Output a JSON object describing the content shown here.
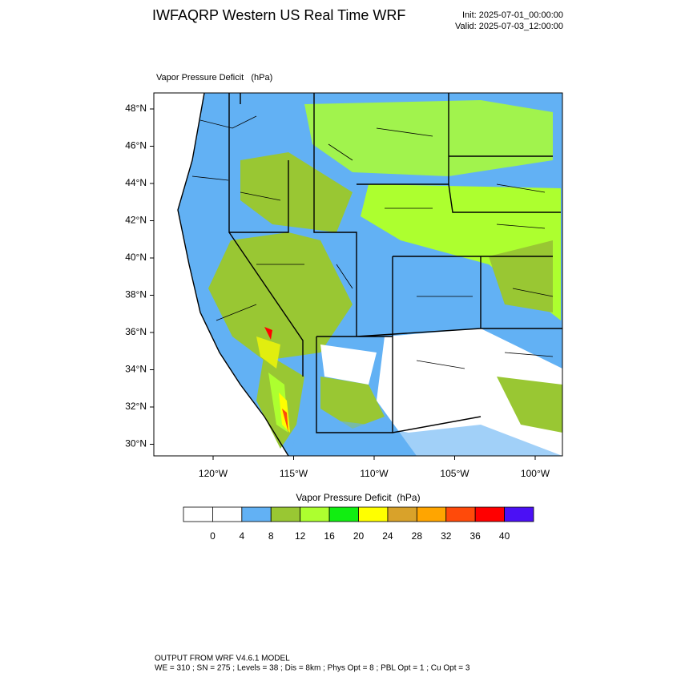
{
  "header": {
    "title": "IWFAQRP Western US Real Time WRF",
    "init": "Init: 2025-07-01_00:00:00",
    "valid": "Valid: 2025-07-03_12:00:00"
  },
  "map": {
    "field_label": "Vapor Pressure Deficit   (hPa)",
    "lat_labels": [
      "48°N",
      "46°N",
      "44°N",
      "42°N",
      "40°N",
      "38°N",
      "36°N",
      "34°N",
      "32°N",
      "30°N"
    ],
    "lon_labels": [
      "120°W",
      "115°W",
      "110°W",
      "105°W",
      "100°W"
    ]
  },
  "colorbar": {
    "title": "Vapor Pressure Deficit  (hPa)",
    "colors": [
      "#ffffff",
      "#ffffff",
      "#62b1f4",
      "#99c733",
      "#adff2f",
      "#11ee11",
      "#ffff00",
      "#d9a22a",
      "#ffa500",
      "#ff4a0a",
      "#ff0000",
      "#4b10f5"
    ],
    "labels": [
      0,
      4,
      8,
      12,
      16,
      20,
      24,
      28,
      32,
      36,
      40
    ]
  },
  "footer": {
    "line1": "OUTPUT FROM WRF V4.6.1 MODEL",
    "line2": "WE = 310 ; SN = 275 ; Levels = 38 ; Dis = 8km ; Phys Opt = 8 ; PBL Opt = 1 ; Cu Opt = 3"
  }
}
